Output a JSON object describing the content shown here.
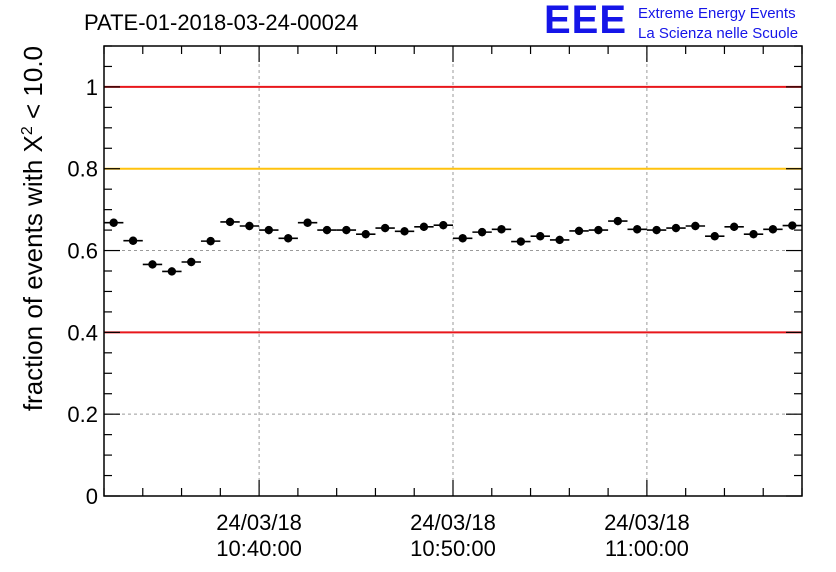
{
  "chart_data": {
    "type": "scatter",
    "title": "PATE-01-2018-03-24-00024",
    "xlabel": "",
    "ylabel_prefix": "fraction of events with X",
    "ylabel_sup": "2",
    "ylabel_suffix": " < 10.0",
    "ylim": [
      0,
      1.1
    ],
    "yticks": [
      0,
      0.2,
      0.4,
      0.6,
      0.8,
      1
    ],
    "ytick_labels": [
      "0",
      "0.2",
      "0.4",
      "0.6",
      "0.8",
      "1"
    ],
    "xlim": [
      "2018-03-24 10:32:00",
      "2018-03-24 11:08:00"
    ],
    "xticks": [
      "2018-03-24 10:40:00",
      "2018-03-24 10:50:00",
      "2018-03-24 11:00:00"
    ],
    "xtick_labels": [
      [
        "24/03/18",
        "10:40:00"
      ],
      [
        "24/03/18",
        "10:50:00"
      ],
      [
        "24/03/18",
        "11:00:00"
      ]
    ],
    "grid": true,
    "reference_lines": [
      {
        "y": 1.0,
        "color": "#e8161b"
      },
      {
        "y": 0.8,
        "color": "#ffc20e"
      },
      {
        "y": 0.4,
        "color": "#e8161b"
      }
    ],
    "x": [
      "2018-03-24 10:32:30",
      "2018-03-24 10:33:30",
      "2018-03-24 10:34:30",
      "2018-03-24 10:35:30",
      "2018-03-24 10:36:30",
      "2018-03-24 10:37:30",
      "2018-03-24 10:38:30",
      "2018-03-24 10:39:30",
      "2018-03-24 10:40:30",
      "2018-03-24 10:41:30",
      "2018-03-24 10:42:30",
      "2018-03-24 10:43:30",
      "2018-03-24 10:44:30",
      "2018-03-24 10:45:30",
      "2018-03-24 10:46:30",
      "2018-03-24 10:47:30",
      "2018-03-24 10:48:30",
      "2018-03-24 10:49:30",
      "2018-03-24 10:50:30",
      "2018-03-24 10:51:30",
      "2018-03-24 10:52:30",
      "2018-03-24 10:53:30",
      "2018-03-24 10:54:30",
      "2018-03-24 10:55:30",
      "2018-03-24 10:56:30",
      "2018-03-24 10:57:30",
      "2018-03-24 10:58:30",
      "2018-03-24 10:59:30",
      "2018-03-24 11:00:30",
      "2018-03-24 11:01:30",
      "2018-03-24 11:02:30",
      "2018-03-24 11:03:30",
      "2018-03-24 11:04:30",
      "2018-03-24 11:05:30",
      "2018-03-24 11:06:30",
      "2018-03-24 11:07:30"
    ],
    "y": [
      0.668,
      0.624,
      0.566,
      0.549,
      0.572,
      0.623,
      0.67,
      0.66,
      0.65,
      0.63,
      0.668,
      0.65,
      0.65,
      0.64,
      0.655,
      0.647,
      0.658,
      0.662,
      0.63,
      0.645,
      0.652,
      0.622,
      0.635,
      0.626,
      0.648,
      0.65,
      0.672,
      0.652,
      0.65,
      0.655,
      0.66,
      0.635,
      0.658,
      0.64,
      0.652,
      0.661
    ],
    "yerr": 0.01
  },
  "logo": {
    "mark": "EEE",
    "line1": "Extreme Energy Events",
    "line2": "La Scienza nelle Scuole",
    "color": "#1515e8"
  }
}
